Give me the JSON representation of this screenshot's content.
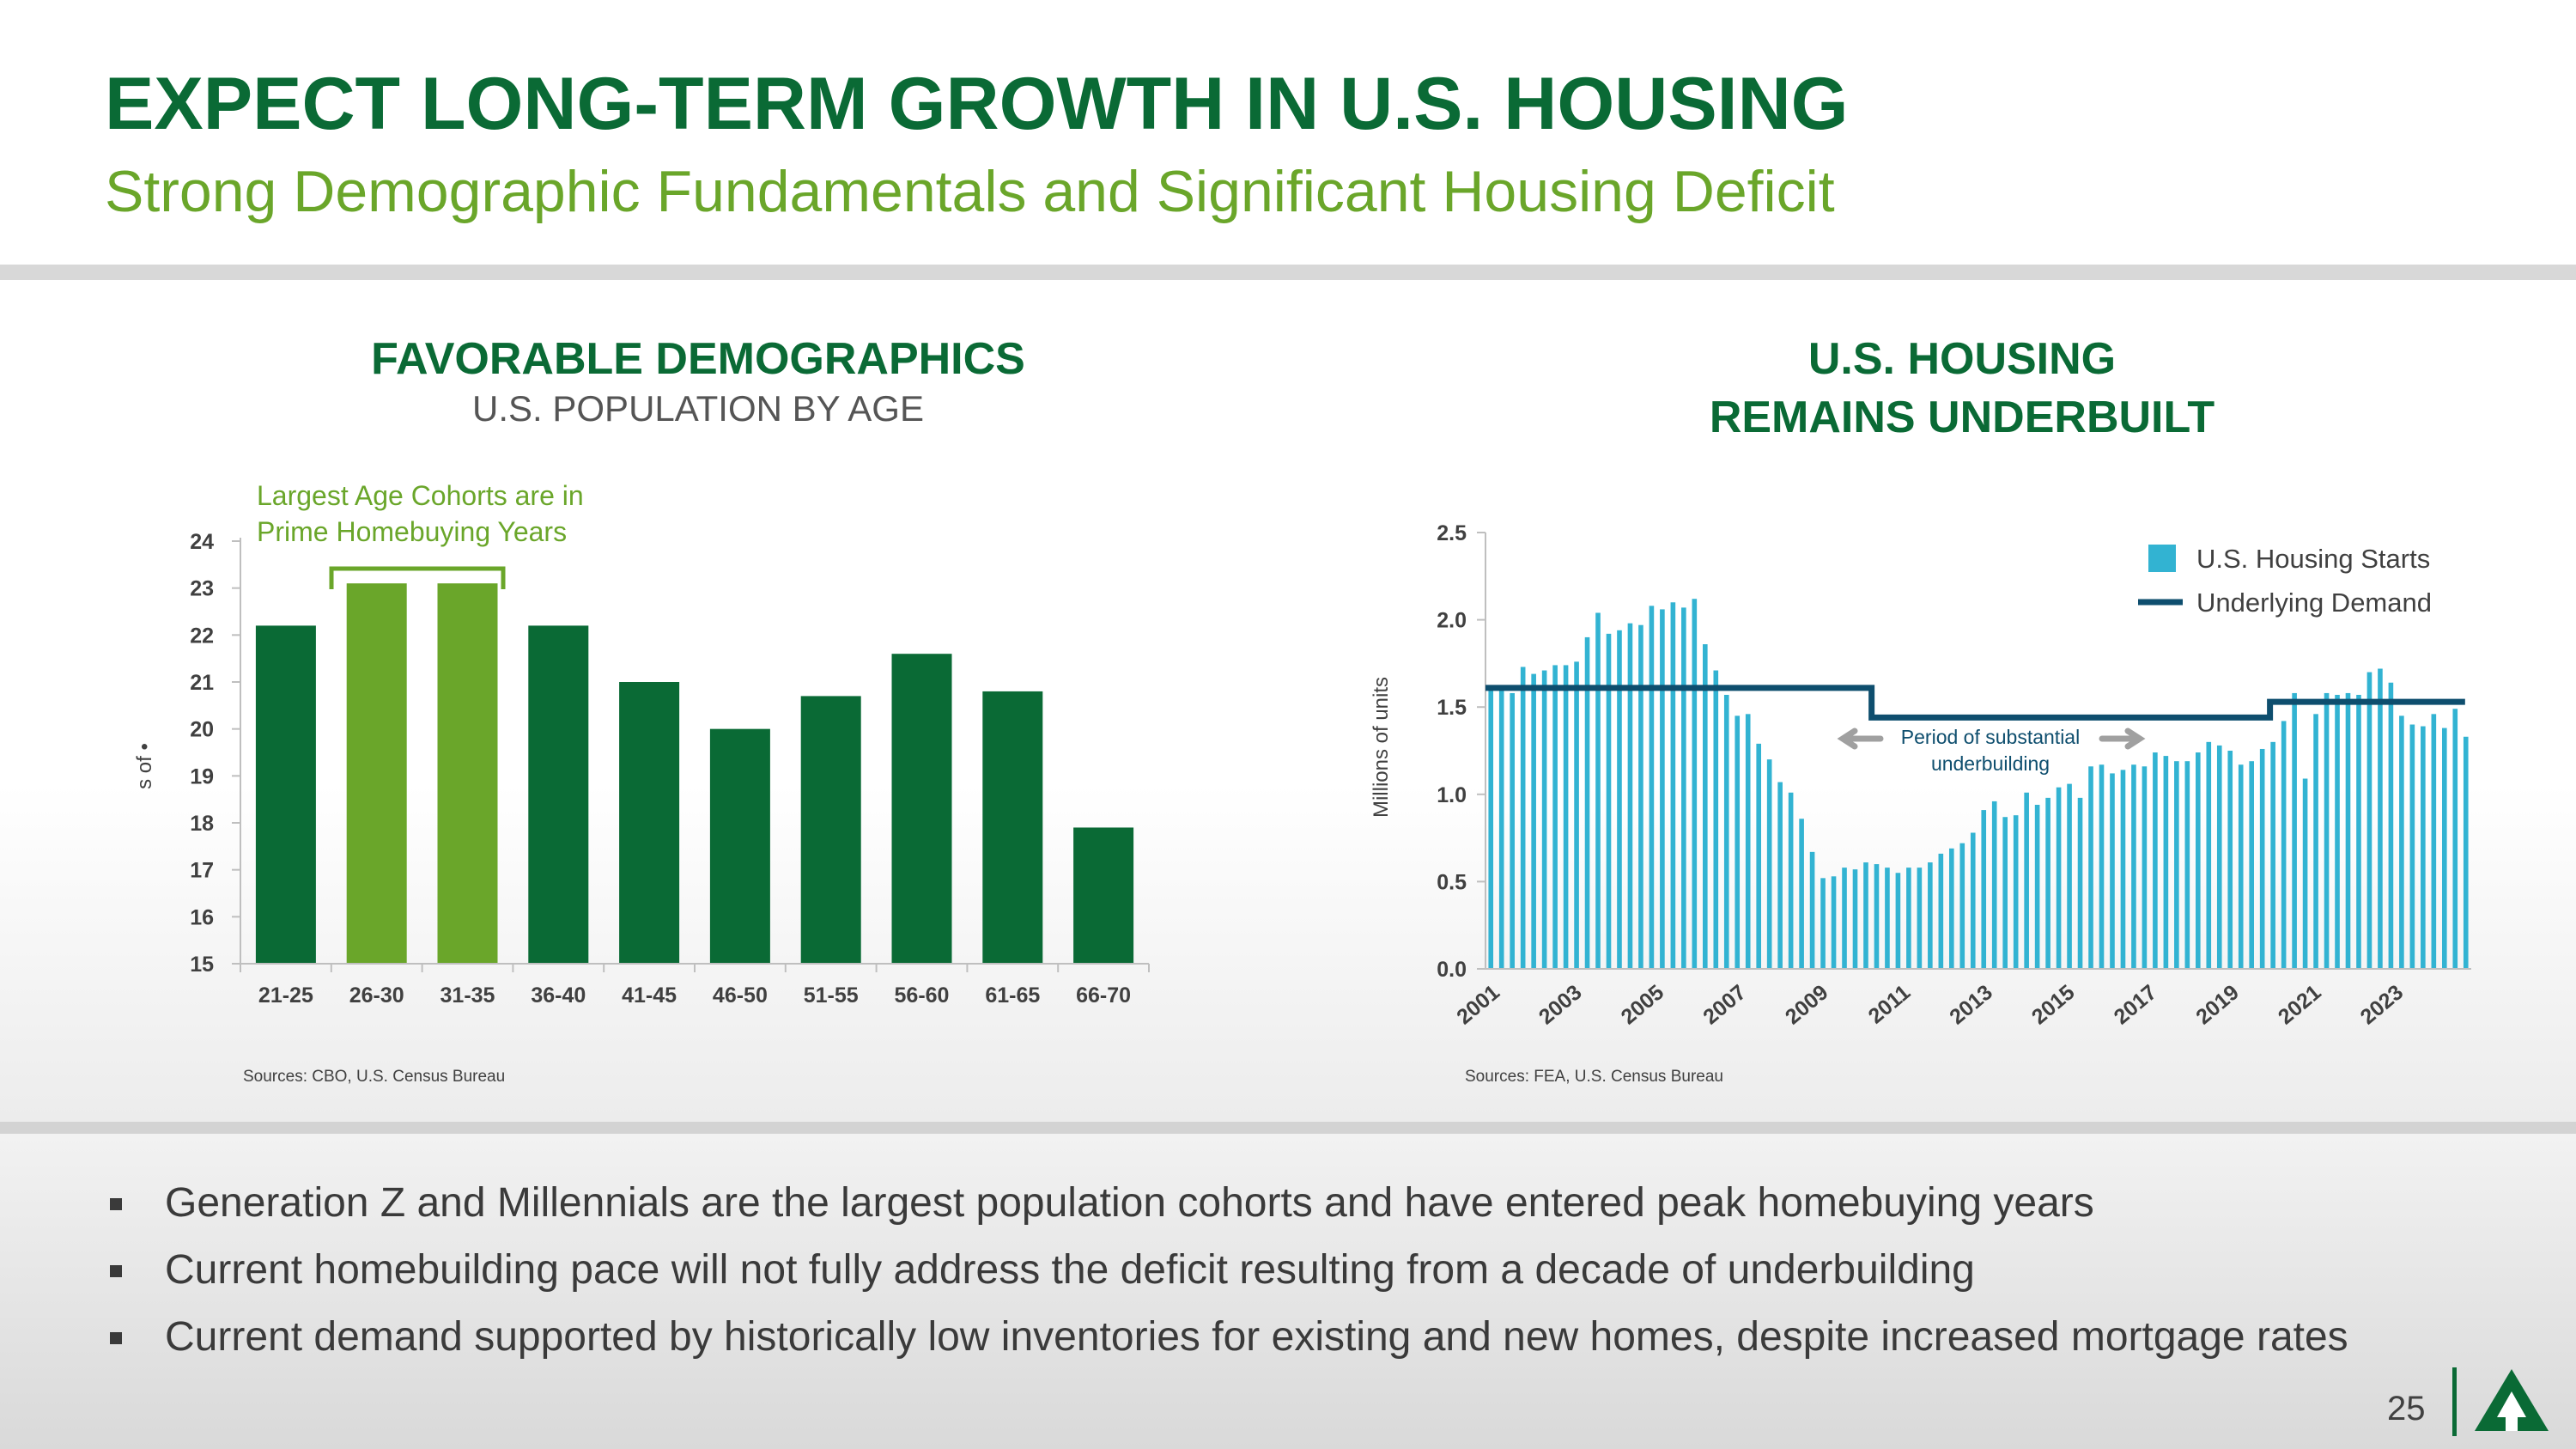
{
  "slide": {
    "title": "EXPECT LONG-TERM GROWTH IN U.S. HOUSING",
    "subtitle": "Strong Demographic Fundamentals and Significant Housing Deficit",
    "page_number": "25",
    "colors": {
      "dark_green": "#0a6a35",
      "light_green": "#6aa62a",
      "cyan": "#32b3d2",
      "navy": "#0e4e6e",
      "gray_arrow": "#a0a0a0"
    }
  },
  "left_chart": {
    "heading": "FAVORABLE DEMOGRAPHICS",
    "subheading": "U.S. POPULATION BY AGE",
    "source": "Sources: CBO, U.S. Census Bureau",
    "annotation": [
      "Largest Age Cohorts are in",
      "Prime Homebuying Years"
    ]
  },
  "right_chart": {
    "heading_line1": "U.S. HOUSING",
    "heading_line2": "REMAINS UNDERBUILT",
    "source": "Sources: FEA, U.S. Census Bureau",
    "annotation": [
      "Period of substantial",
      "underbuilding"
    ]
  },
  "chart_data": [
    {
      "type": "bar",
      "title": "U.S. POPULATION BY AGE",
      "ylabel": "s of •",
      "xlabel": "",
      "categories": [
        "21-25",
        "26-30",
        "31-35",
        "36-40",
        "41-45",
        "46-50",
        "51-55",
        "56-60",
        "61-65",
        "66-70"
      ],
      "values": [
        22.2,
        23.1,
        23.1,
        22.2,
        21.0,
        20.0,
        20.7,
        21.6,
        20.8,
        17.9
      ],
      "highlighted": [
        false,
        true,
        true,
        false,
        false,
        false,
        false,
        false,
        false,
        false
      ],
      "ylim": [
        15,
        24
      ],
      "yticks": [
        "15",
        "16",
        "17",
        "18",
        "19",
        "20",
        "21",
        "22",
        "23",
        "24"
      ],
      "grid": false
    },
    {
      "type": "bar",
      "title": "U.S. HOUSING REMAINS UNDERBUILT",
      "ylabel": "Millions of units",
      "ylim": [
        0,
        2.5
      ],
      "yticks": [
        "0.0",
        "0.5",
        "1.0",
        "1.5",
        "2.0",
        "2.5"
      ],
      "xticks": [
        "2001",
        "2003",
        "2005",
        "2007",
        "2009",
        "2011",
        "2013",
        "2015",
        "2017",
        "2019",
        "2021",
        "2023"
      ],
      "x_start": 2001,
      "x_end": 2025,
      "legend": "top-right",
      "series": [
        {
          "name": "U.S. Housing Starts",
          "type": "bar",
          "frequency": "monthly (plotted every 2 months)",
          "values": [
            1.62,
            1.6,
            1.58,
            1.73,
            1.69,
            1.71,
            1.74,
            1.74,
            1.76,
            1.9,
            2.04,
            1.92,
            1.94,
            1.98,
            1.97,
            2.08,
            2.06,
            2.1,
            2.07,
            2.12,
            1.86,
            1.71,
            1.57,
            1.45,
            1.46,
            1.29,
            1.2,
            1.07,
            1.01,
            0.86,
            0.67,
            0.52,
            0.53,
            0.58,
            0.57,
            0.61,
            0.6,
            0.58,
            0.55,
            0.58,
            0.58,
            0.61,
            0.66,
            0.69,
            0.72,
            0.78,
            0.91,
            0.96,
            0.87,
            0.88,
            1.01,
            0.94,
            0.98,
            1.04,
            1.06,
            0.98,
            1.16,
            1.17,
            1.12,
            1.14,
            1.17,
            1.16,
            1.24,
            1.22,
            1.19,
            1.19,
            1.24,
            1.3,
            1.28,
            1.25,
            1.17,
            1.19,
            1.26,
            1.3,
            1.42,
            1.58,
            1.09,
            1.46,
            1.58,
            1.57,
            1.58,
            1.57,
            1.7,
            1.72,
            1.64,
            1.45,
            1.4,
            1.39,
            1.46,
            1.38,
            1.49,
            1.33
          ]
        },
        {
          "name": "Underlying Demand",
          "type": "step-line",
          "segments": [
            {
              "from": 2001,
              "to": 2010.4,
              "value": 1.61
            },
            {
              "from": 2010.4,
              "to": 2020.1,
              "value": 1.44
            },
            {
              "from": 2020.1,
              "to": 2024.85,
              "value": 1.53
            }
          ]
        }
      ]
    }
  ],
  "bullets": [
    "Generation Z and Millennials are the largest population cohorts and have entered peak homebuying years",
    "Current homebuilding pace will not fully address the deficit resulting from a decade of underbuilding",
    "Current demand supported by historically low inventories for existing and new homes, despite increased mortgage rates"
  ]
}
